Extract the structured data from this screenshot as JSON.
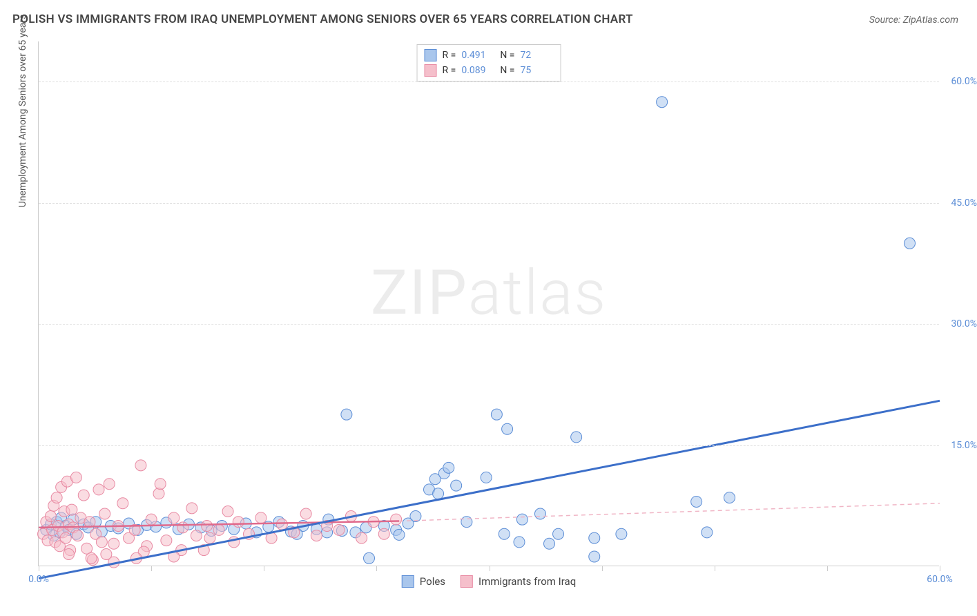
{
  "title": "POLISH VS IMMIGRANTS FROM IRAQ UNEMPLOYMENT AMONG SENIORS OVER 65 YEARS CORRELATION CHART",
  "source": "Source: ZipAtlas.com",
  "watermark": "ZIPatlas",
  "y_axis_title": "Unemployment Among Seniors over 65 years",
  "chart": {
    "type": "scatter",
    "xlim": [
      0,
      60
    ],
    "ylim": [
      0,
      65
    ],
    "x_ticks": [
      0,
      7.5,
      15,
      22.5,
      30,
      37.5,
      45,
      52.5,
      60
    ],
    "x_tick_labels": {
      "0": "0.0%",
      "60": "60.0%"
    },
    "y_ticks": [
      15,
      30,
      45,
      60
    ],
    "y_tick_labels": {
      "15": "15.0%",
      "30": "30.0%",
      "45": "45.0%",
      "60": "60.0%"
    },
    "background_color": "#ffffff",
    "grid_color": "#e0e0e0",
    "axis_color": "#cccccc",
    "label_color": "#5b8dd6",
    "marker_radius": 8,
    "marker_opacity": 0.55,
    "series": [
      {
        "name": "Poles",
        "color_fill": "#a9c6ec",
        "color_stroke": "#5b8dd6",
        "r_label": "R =",
        "r_value": "0.491",
        "n_label": "N =",
        "n_value": "72",
        "trend": {
          "x1": 0,
          "y1": -1.5,
          "x2": 60,
          "y2": 20.5,
          "stroke": "#3c6fc9",
          "width": 3,
          "dash": ""
        },
        "points": [
          [
            0.5,
            4.5
          ],
          [
            0.8,
            5.2
          ],
          [
            1.0,
            3.8
          ],
          [
            1.2,
            5.5
          ],
          [
            1.4,
            4.2
          ],
          [
            1.5,
            6.0
          ],
          [
            1.8,
            5.0
          ],
          [
            2.0,
            4.5
          ],
          [
            2.3,
            5.8
          ],
          [
            2.5,
            4.0
          ],
          [
            3.0,
            5.2
          ],
          [
            3.3,
            4.8
          ],
          [
            3.8,
            5.5
          ],
          [
            4.2,
            4.3
          ],
          [
            4.8,
            5.0
          ],
          [
            5.3,
            4.7
          ],
          [
            6.0,
            5.3
          ],
          [
            6.6,
            4.5
          ],
          [
            7.2,
            5.1
          ],
          [
            7.8,
            4.9
          ],
          [
            8.5,
            5.4
          ],
          [
            9.3,
            4.6
          ],
          [
            10.0,
            5.2
          ],
          [
            10.8,
            4.8
          ],
          [
            11.5,
            4.4
          ],
          [
            12.2,
            5.0
          ],
          [
            13.0,
            4.6
          ],
          [
            13.8,
            5.3
          ],
          [
            14.5,
            4.2
          ],
          [
            15.3,
            4.9
          ],
          [
            16.0,
            5.5
          ],
          [
            16.8,
            4.3
          ],
          [
            17.6,
            5.0
          ],
          [
            18.5,
            4.6
          ],
          [
            19.3,
            5.8
          ],
          [
            20.2,
            4.4
          ],
          [
            21.1,
            4.2
          ],
          [
            22.0,
            1.0
          ],
          [
            20.5,
            18.8
          ],
          [
            23.0,
            5.0
          ],
          [
            23.8,
            4.5
          ],
          [
            24.6,
            5.3
          ],
          [
            25.1,
            6.2
          ],
          [
            26.0,
            9.5
          ],
          [
            26.4,
            10.8
          ],
          [
            26.6,
            9.0
          ],
          [
            27.0,
            11.5
          ],
          [
            27.3,
            12.2
          ],
          [
            27.8,
            10.0
          ],
          [
            28.5,
            5.5
          ],
          [
            29.8,
            11.0
          ],
          [
            30.5,
            18.8
          ],
          [
            31.0,
            4.0
          ],
          [
            31.2,
            17.0
          ],
          [
            32.0,
            3.0
          ],
          [
            32.2,
            5.8
          ],
          [
            33.4,
            6.5
          ],
          [
            34.0,
            2.8
          ],
          [
            34.6,
            4.0
          ],
          [
            35.8,
            16.0
          ],
          [
            37.0,
            3.5
          ],
          [
            37.0,
            1.2
          ],
          [
            38.8,
            4.0
          ],
          [
            41.5,
            57.5
          ],
          [
            43.8,
            8.0
          ],
          [
            44.5,
            4.2
          ],
          [
            46.0,
            8.5
          ],
          [
            58.0,
            40.0
          ],
          [
            17.2,
            4.0
          ],
          [
            19.2,
            4.2
          ],
          [
            21.8,
            4.8
          ],
          [
            24.0,
            3.9
          ]
        ]
      },
      {
        "name": "Immigrants from Iraq",
        "color_fill": "#f5bfcb",
        "color_stroke": "#e88aa3",
        "r_label": "R =",
        "r_value": "0.089",
        "n_label": "N =",
        "n_value": "75",
        "trend_solid": {
          "x1": 0,
          "y1": 4.8,
          "x2": 24,
          "y2": 5.6,
          "stroke": "#e06a8c",
          "width": 2.5
        },
        "trend_dash": {
          "x1": 24,
          "y1": 5.6,
          "x2": 60,
          "y2": 7.8,
          "stroke": "#f0b5c5",
          "width": 1.5,
          "dash": "6,5"
        },
        "points": [
          [
            0.3,
            4.0
          ],
          [
            0.5,
            5.5
          ],
          [
            0.6,
            3.2
          ],
          [
            0.8,
            6.2
          ],
          [
            0.9,
            4.5
          ],
          [
            1.0,
            7.5
          ],
          [
            1.1,
            3.0
          ],
          [
            1.2,
            8.5
          ],
          [
            1.3,
            5.0
          ],
          [
            1.4,
            2.5
          ],
          [
            1.5,
            9.8
          ],
          [
            1.6,
            4.2
          ],
          [
            1.7,
            6.8
          ],
          [
            1.8,
            3.5
          ],
          [
            1.9,
            10.5
          ],
          [
            2.0,
            5.2
          ],
          [
            2.1,
            2.0
          ],
          [
            2.2,
            7.0
          ],
          [
            2.3,
            4.8
          ],
          [
            2.5,
            11.0
          ],
          [
            2.6,
            3.8
          ],
          [
            2.8,
            6.0
          ],
          [
            3.0,
            8.8
          ],
          [
            3.2,
            2.2
          ],
          [
            3.4,
            5.5
          ],
          [
            3.6,
            0.8
          ],
          [
            3.8,
            4.0
          ],
          [
            4.0,
            9.5
          ],
          [
            4.2,
            3.0
          ],
          [
            4.4,
            6.5
          ],
          [
            4.7,
            10.2
          ],
          [
            5.0,
            2.8
          ],
          [
            5.3,
            5.0
          ],
          [
            5.6,
            7.8
          ],
          [
            6.0,
            3.5
          ],
          [
            6.4,
            4.5
          ],
          [
            6.8,
            12.5
          ],
          [
            7.2,
            2.5
          ],
          [
            7.5,
            5.8
          ],
          [
            8.0,
            9.0
          ],
          [
            8.1,
            10.2
          ],
          [
            8.5,
            3.2
          ],
          [
            9.0,
            6.0
          ],
          [
            9.5,
            2.0
          ],
          [
            9.6,
            4.8
          ],
          [
            10.2,
            7.2
          ],
          [
            10.5,
            3.8
          ],
          [
            11.2,
            5.0
          ],
          [
            11.4,
            3.5
          ],
          [
            12.0,
            4.5
          ],
          [
            12.6,
            6.8
          ],
          [
            13.0,
            3.0
          ],
          [
            13.3,
            5.5
          ],
          [
            14.0,
            4.0
          ],
          [
            14.8,
            6.0
          ],
          [
            15.5,
            3.5
          ],
          [
            16.2,
            5.2
          ],
          [
            17.0,
            4.2
          ],
          [
            17.8,
            6.5
          ],
          [
            18.5,
            3.8
          ],
          [
            19.2,
            5.0
          ],
          [
            20.0,
            4.5
          ],
          [
            20.8,
            6.2
          ],
          [
            21.5,
            3.5
          ],
          [
            22.3,
            5.5
          ],
          [
            23.0,
            4.0
          ],
          [
            23.8,
            5.8
          ],
          [
            2.0,
            1.5
          ],
          [
            3.5,
            1.0
          ],
          [
            5.0,
            0.5
          ],
          [
            7.0,
            1.8
          ],
          [
            9.0,
            1.2
          ],
          [
            11.0,
            2.0
          ],
          [
            6.5,
            1.0
          ],
          [
            4.5,
            1.5
          ]
        ]
      }
    ]
  }
}
